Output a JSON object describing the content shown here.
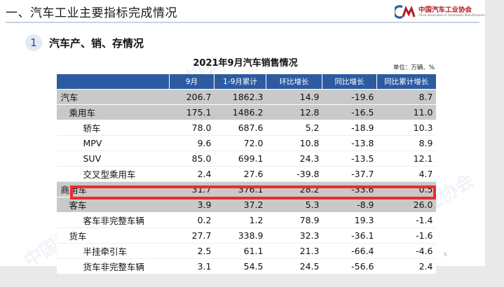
{
  "slide": {
    "title": "一、汽车工业主要指标完成情况",
    "logo": {
      "name_cn": "中国汽车工业协会",
      "name_en": "China Association of Automobile Manufacturers"
    },
    "section": {
      "number": "1",
      "title": "汽车产、销、存情况"
    },
    "page_number": "5",
    "watermark": "中国汽车工业协会"
  },
  "table": {
    "title": "2021年9月汽车销售情况",
    "unit": "单位：万辆、%",
    "headers": [
      "",
      "9月",
      "1-9月累计",
      "环比增长",
      "同比增长",
      "同比累计增长"
    ],
    "rows": [
      {
        "label": "汽车",
        "m9": "206.7",
        "ytd": "1862.3",
        "mom": "14.9",
        "yoy": "-19.6",
        "yoy_ytd": "8.7"
      },
      {
        "label": "乘用车",
        "m9": "175.1",
        "ytd": "1486.2",
        "mom": "12.8",
        "yoy": "-16.5",
        "yoy_ytd": "11.0"
      },
      {
        "label": "轿车",
        "m9": "78.0",
        "ytd": "687.6",
        "mom": "5.2",
        "yoy": "-18.9",
        "yoy_ytd": "10.3"
      },
      {
        "label": "MPV",
        "m9": "9.6",
        "ytd": "72.0",
        "mom": "10.8",
        "yoy": "-13.8",
        "yoy_ytd": "8.9"
      },
      {
        "label": "SUV",
        "m9": "85.0",
        "ytd": "699.1",
        "mom": "24.3",
        "yoy": "-13.5",
        "yoy_ytd": "12.1"
      },
      {
        "label": "交叉型乘用车",
        "m9": "2.4",
        "ytd": "27.6",
        "mom": "-39.8",
        "yoy": "-37.7",
        "yoy_ytd": "4.7"
      },
      {
        "label": "商用车",
        "m9": "31.7",
        "ytd": "376.1",
        "mom": "28.2",
        "yoy": "-33.6",
        "yoy_ytd": "0.5"
      },
      {
        "label": "客车",
        "m9": "3.9",
        "ytd": "37.2",
        "mom": "5.3",
        "yoy": "-8.9",
        "yoy_ytd": "26.0"
      },
      {
        "label": "客车非完整车辆",
        "m9": "0.2",
        "ytd": "1.2",
        "mom": "78.9",
        "yoy": "19.3",
        "yoy_ytd": "-1.4"
      },
      {
        "label": "货车",
        "m9": "27.7",
        "ytd": "338.9",
        "mom": "32.3",
        "yoy": "-36.1",
        "yoy_ytd": "-1.6"
      },
      {
        "label": "半挂牵引车",
        "m9": "2.5",
        "ytd": "61.1",
        "mom": "21.3",
        "yoy": "-66.4",
        "yoy_ytd": "-4.6"
      },
      {
        "label": "货车非完整车辆",
        "m9": "3.1",
        "ytd": "54.5",
        "mom": "24.5",
        "yoy": "-56.6",
        "yoy_ytd": "2.4"
      }
    ]
  },
  "colors": {
    "header_bg": "#2d5ba1",
    "group_bg": "#c9c9c9",
    "highlight": "#ee2b2b",
    "logo_red": "#b01c24"
  }
}
